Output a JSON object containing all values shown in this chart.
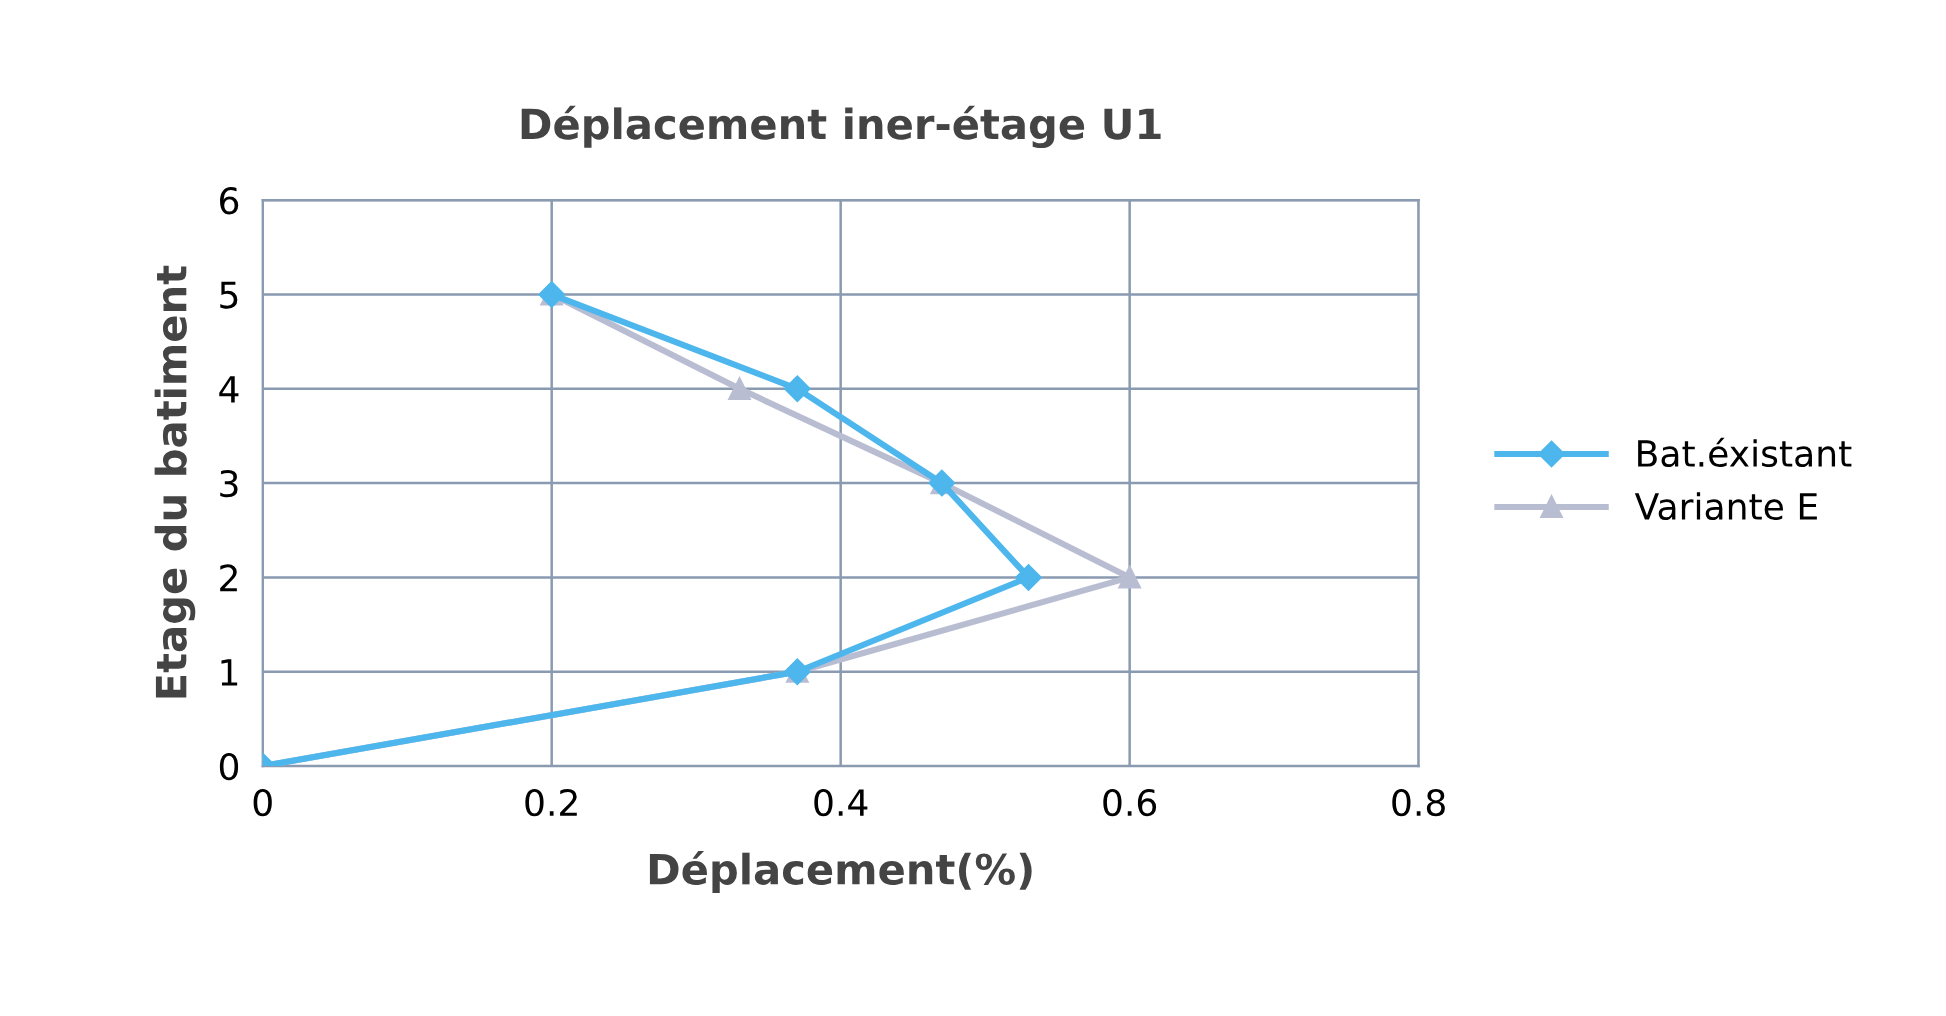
{
  "chart_data": {
    "type": "line",
    "title": "Déplacement iner-étage U1",
    "xlabel": "Déplacement(%)",
    "ylabel": "Etage du batiment",
    "xlim": [
      0,
      0.8
    ],
    "xticks": [
      0,
      0.2,
      0.4,
      0.6,
      0.8
    ],
    "ylim": [
      0,
      6
    ],
    "yticks": [
      0,
      1,
      2,
      3,
      4,
      5,
      6
    ],
    "grid": true,
    "legend": "right",
    "series": [
      {
        "name": "Bat.éxistant",
        "color": "#4db6ec",
        "marker": "diamond",
        "x": [
          0,
          0.37,
          0.53,
          0.47,
          0.37,
          0.2
        ],
        "values": [
          0,
          1,
          2,
          3,
          4,
          5
        ]
      },
      {
        "name": "Variante E",
        "color": "#b9bdd2",
        "marker": "triangle",
        "x": [
          0,
          0.37,
          0.6,
          0.47,
          0.33,
          0.2
        ],
        "values": [
          0,
          1,
          2,
          3,
          4,
          5
        ]
      }
    ]
  }
}
